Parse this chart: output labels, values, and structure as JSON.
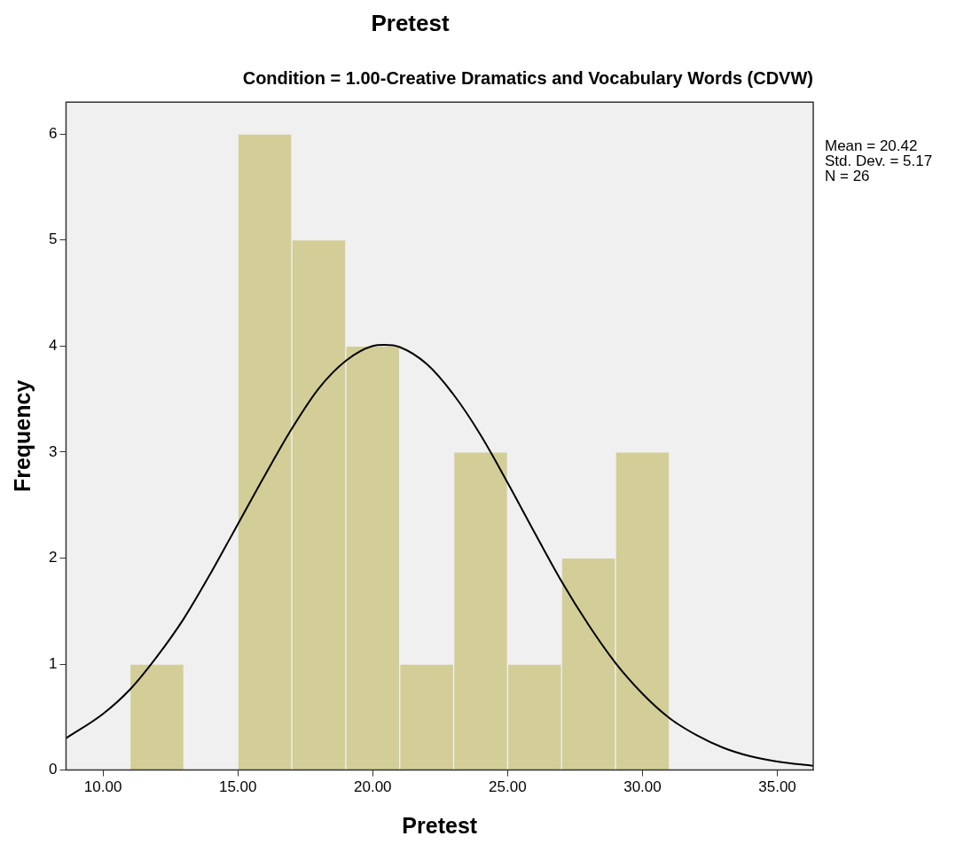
{
  "chart_data": {
    "type": "histogram",
    "title": "Pretest",
    "subtitle": "Condition = 1.00-Creative Dramatics and Vocabulary Words (CDVW)",
    "xlabel": "Pretest",
    "ylabel": "Frequency",
    "series": [
      {
        "color": "#d3ce97",
        "bins": [
          11,
          13,
          15,
          17,
          19,
          21,
          23,
          25,
          27,
          29,
          31
        ],
        "values": [
          1,
          0,
          6,
          5,
          4,
          1,
          3,
          1,
          2,
          3
        ]
      },
      {
        "type": "line",
        "color": "#000000",
        "x": [
          8.63,
          10,
          11,
          12,
          13,
          14,
          15,
          16,
          17,
          18,
          19,
          20,
          20.42,
          21,
          22,
          23,
          24,
          25,
          26,
          27,
          28,
          29,
          30,
          31,
          32,
          33,
          34,
          35,
          36.33
        ],
        "values": [
          0.3,
          0.53,
          0.76,
          1.07,
          1.43,
          1.86,
          2.32,
          2.78,
          3.22,
          3.6,
          3.86,
          4.0,
          4.01,
          3.99,
          3.83,
          3.54,
          3.16,
          2.71,
          2.24,
          1.78,
          1.37,
          1.01,
          0.72,
          0.49,
          0.33,
          0.21,
          0.13,
          0.08,
          0.04
        ]
      }
    ],
    "xlim": [
      8.63,
      36.33
    ],
    "xticks": [
      {
        "value": 10,
        "label": "10.00"
      },
      {
        "value": 15,
        "label": "15.00"
      },
      {
        "value": 20,
        "label": "20.00"
      },
      {
        "value": 25,
        "label": "25.00"
      },
      {
        "value": 30,
        "label": "30.00"
      },
      {
        "value": 35,
        "label": "35.00"
      }
    ],
    "ylim": [
      0,
      6.3
    ],
    "yticks": [
      0,
      1,
      2,
      3,
      4,
      5,
      6
    ],
    "grid": false,
    "legend": false,
    "marker": "none",
    "line_style": "solid",
    "annotations": [
      "Mean = 20.42",
      "Std. Dev. = 5.17",
      "N = 26"
    ]
  }
}
